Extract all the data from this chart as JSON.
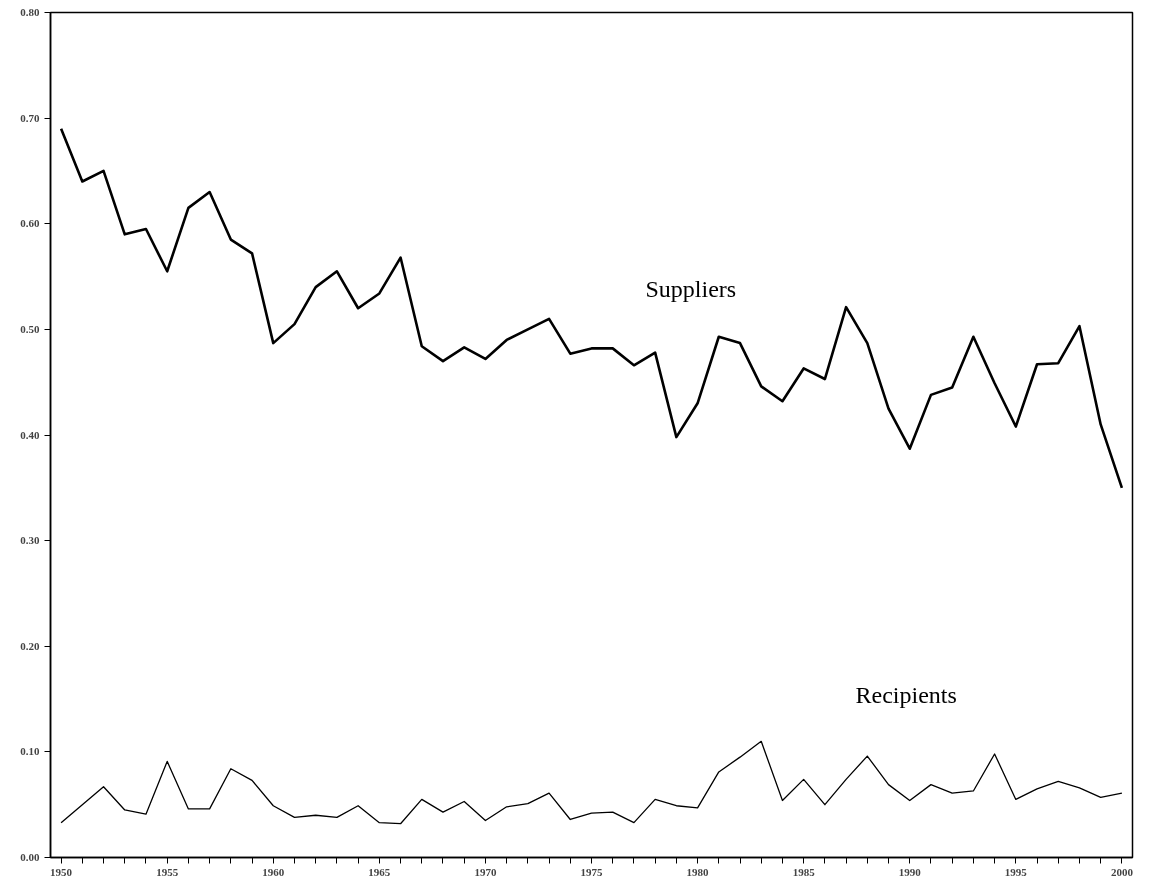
{
  "chart_data": {
    "type": "line",
    "x": [
      1950,
      1951,
      1952,
      1953,
      1954,
      1955,
      1956,
      1957,
      1958,
      1959,
      1960,
      1961,
      1962,
      1963,
      1964,
      1965,
      1966,
      1967,
      1968,
      1969,
      1970,
      1971,
      1972,
      1973,
      1974,
      1975,
      1976,
      1977,
      1978,
      1979,
      1980,
      1981,
      1982,
      1983,
      1984,
      1985,
      1986,
      1987,
      1988,
      1989,
      1990,
      1991,
      1992,
      1993,
      1994,
      1995,
      1996,
      1997,
      1998,
      1999,
      2000
    ],
    "series": [
      {
        "name": "Suppliers",
        "color": "#000000",
        "values": [
          0.69,
          0.64,
          0.65,
          0.59,
          0.595,
          0.555,
          0.615,
          0.63,
          0.585,
          0.572,
          0.487,
          0.505,
          0.54,
          0.555,
          0.52,
          0.534,
          0.568,
          0.484,
          0.47,
          0.483,
          0.472,
          0.49,
          0.5,
          0.51,
          0.477,
          0.482,
          0.482,
          0.466,
          0.478,
          0.398,
          0.43,
          0.493,
          0.487,
          0.446,
          0.432,
          0.463,
          0.453,
          0.521,
          0.487,
          0.425,
          0.387,
          0.438,
          0.445,
          0.493,
          0.449,
          0.408,
          0.467,
          0.468,
          0.503,
          0.41,
          0.35
        ]
      },
      {
        "name": "Recipients",
        "color": "#000000",
        "values": [
          0.033,
          0.05,
          0.067,
          0.045,
          0.041,
          0.091,
          0.046,
          0.046,
          0.084,
          0.073,
          0.049,
          0.038,
          0.04,
          0.038,
          0.049,
          0.033,
          0.032,
          0.055,
          0.043,
          0.053,
          0.035,
          0.048,
          0.051,
          0.061,
          0.036,
          0.042,
          0.043,
          0.033,
          0.055,
          0.049,
          0.047,
          0.081,
          0.095,
          0.11,
          0.054,
          0.074,
          0.05,
          0.074,
          0.096,
          0.069,
          0.054,
          0.069,
          0.061,
          0.063,
          0.098,
          0.055,
          0.065,
          0.072,
          0.066,
          0.057,
          0.061
        ]
      }
    ],
    "xlim": [
      1949.5,
      2000.5
    ],
    "xticks": [
      1950,
      {
        "value": 1951,
        "label": null
      },
      {
        "value": 1952,
        "label": null
      },
      {
        "value": 1953,
        "label": null
      },
      {
        "value": 1954,
        "label": null
      },
      1955,
      {
        "value": 1956,
        "label": null
      },
      {
        "value": 1957,
        "label": null
      },
      {
        "value": 1958,
        "label": null
      },
      {
        "value": 1959,
        "label": null
      },
      1960,
      {
        "value": 1961,
        "label": null
      },
      {
        "value": 1962,
        "label": null
      },
      {
        "value": 1963,
        "label": null
      },
      {
        "value": 1964,
        "label": null
      },
      1965,
      {
        "value": 1966,
        "label": null
      },
      {
        "value": 1967,
        "label": null
      },
      {
        "value": 1968,
        "label": null
      },
      {
        "value": 1969,
        "label": null
      },
      1970,
      {
        "value": 1971,
        "label": null
      },
      {
        "value": 1972,
        "label": null
      },
      {
        "value": 1973,
        "label": null
      },
      {
        "value": 1974,
        "label": null
      },
      1975,
      {
        "value": 1976,
        "label": null
      },
      {
        "value": 1977,
        "label": null
      },
      {
        "value": 1978,
        "label": null
      },
      {
        "value": 1979,
        "label": null
      },
      1980,
      {
        "value": 1981,
        "label": null
      },
      {
        "value": 1982,
        "label": null
      },
      {
        "value": 1983,
        "label": null
      },
      {
        "value": 1984,
        "label": null
      },
      1985,
      {
        "value": 1986,
        "label": null
      },
      {
        "value": 1987,
        "label": null
      },
      {
        "value": 1988,
        "label": null
      },
      {
        "value": 1989,
        "label": null
      },
      1990,
      {
        "value": 1991,
        "label": null
      },
      {
        "value": 1992,
        "label": null
      },
      {
        "value": 1993,
        "label": null
      },
      {
        "value": 1994,
        "label": null
      },
      1995,
      {
        "value": 1996,
        "label": null
      },
      {
        "value": 1997,
        "label": null
      },
      {
        "value": 1998,
        "label": null
      },
      {
        "value": 1999,
        "label": null
      },
      2000
    ],
    "ylim": [
      0,
      0.8
    ],
    "yticks": [
      {
        "value": 0,
        "label": "0.00"
      },
      {
        "value": 0.1,
        "label": "0.10"
      },
      {
        "value": 0.2,
        "label": "0.20"
      },
      {
        "value": 0.3,
        "label": "0.30"
      },
      {
        "value": 0.4,
        "label": "0.40"
      },
      {
        "value": 0.5,
        "label": "0.50"
      },
      {
        "value": 0.6,
        "label": "0.60"
      },
      {
        "value": 0.7,
        "label": "0.70"
      },
      {
        "value": 0.8,
        "label": "0.80"
      }
    ],
    "grid": false,
    "legend": false,
    "marker": "none",
    "line_style": "solid"
  }
}
